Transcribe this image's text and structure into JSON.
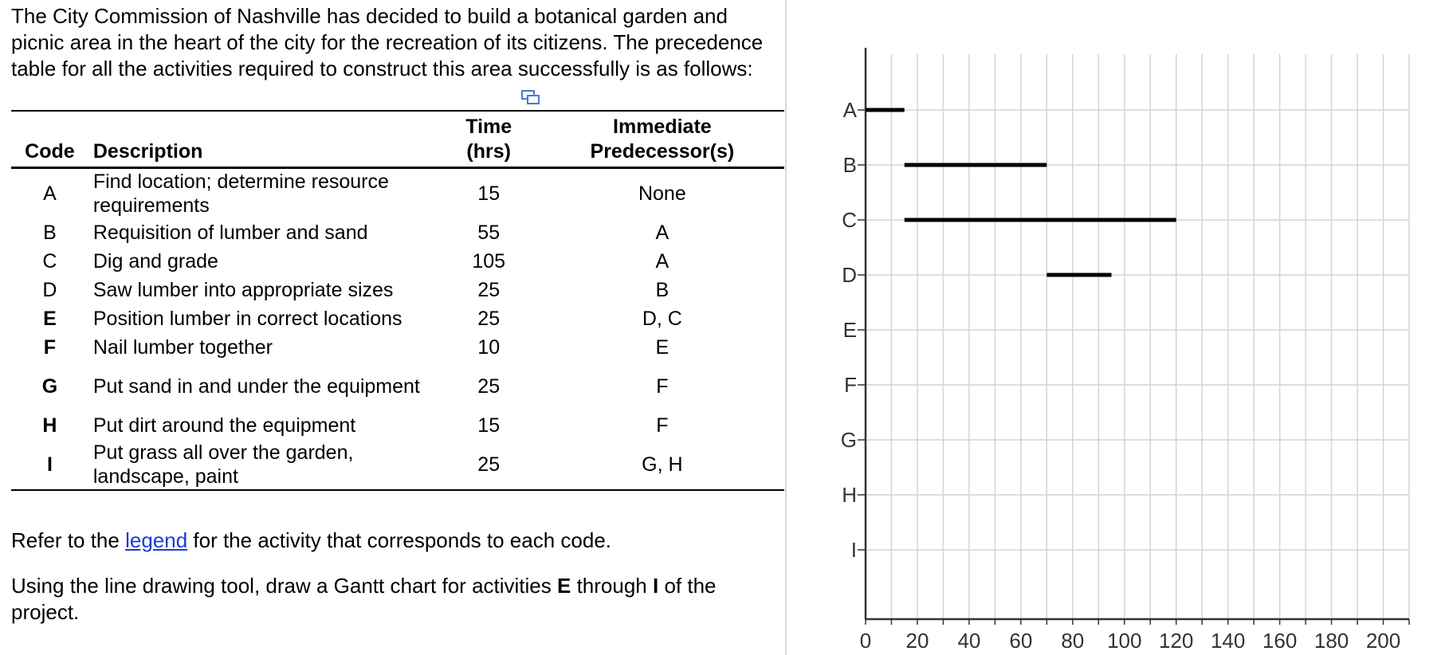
{
  "intro": "The City Commission of Nashville has decided to build a botanical garden and picnic area in the heart of the city for the recreation of its citizens. The precedence table for all the activities required to construct this area successfully is as follows:",
  "table": {
    "headers": {
      "code": "Code",
      "description": "Description",
      "time_line1": "Time",
      "time_line2": "(hrs)",
      "pred_line1": "Immediate",
      "pred_line2": "Predecessor(s)"
    },
    "rows": [
      {
        "code": "A",
        "description": "Find location; determine resource requirements",
        "time": "15",
        "predecessors": "None"
      },
      {
        "code": "B",
        "description": "Requisition of lumber and sand",
        "time": "55",
        "predecessors": "A"
      },
      {
        "code": "C",
        "description": "Dig and grade",
        "time": "105",
        "predecessors": "A"
      },
      {
        "code": "D",
        "description": "Saw lumber into appropriate sizes",
        "time": "25",
        "predecessors": "B"
      },
      {
        "code": "E",
        "description": "Position lumber in correct locations",
        "time": "25",
        "predecessors": "D, C"
      },
      {
        "code": "F",
        "description": "Nail lumber together",
        "time": "10",
        "predecessors": "E"
      },
      {
        "code": "G",
        "description": "Put sand in and under the equipment",
        "time": "25",
        "predecessors": "F"
      },
      {
        "code": "H",
        "description": "Put dirt around the equipment",
        "time": "15",
        "predecessors": "F"
      },
      {
        "code": "I",
        "description": "Put grass all over the garden, landscape, paint",
        "time": "25",
        "predecessors": "G, H"
      }
    ]
  },
  "legend_text": {
    "before": "Refer to the ",
    "link": "legend",
    "after": " for the activity that corresponds to each code."
  },
  "instruction": {
    "before": "Using the line drawing tool, draw a Gantt chart for activities ",
    "bold1": "E",
    "middle": " through ",
    "bold2": "I",
    "after": " of the project."
  },
  "chart_data": {
    "type": "gantt",
    "categories": [
      "A",
      "B",
      "C",
      "D",
      "E",
      "F",
      "G",
      "H",
      "I"
    ],
    "bars": [
      {
        "activity": "A",
        "start": 0,
        "end": 15
      },
      {
        "activity": "B",
        "start": 15,
        "end": 70
      },
      {
        "activity": "C",
        "start": 15,
        "end": 120
      },
      {
        "activity": "D",
        "start": 70,
        "end": 95
      }
    ],
    "xlim": [
      0,
      210
    ],
    "xticks": [
      0,
      20,
      40,
      60,
      80,
      100,
      120,
      140,
      160,
      180,
      200
    ],
    "minor_step": 10,
    "grid": true,
    "title": "",
    "xlabel": "",
    "ylabel": ""
  }
}
